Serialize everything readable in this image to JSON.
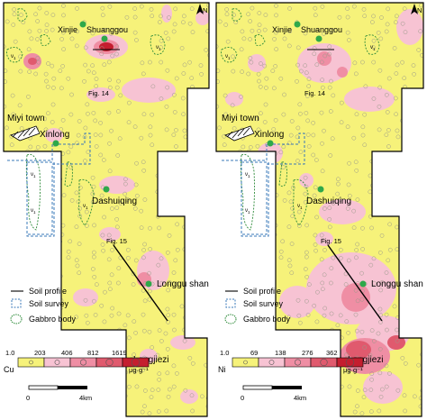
{
  "panels": [
    {
      "id": "cu",
      "element": "Cu",
      "unit": "μg·g⁻¹",
      "legend_breaks": [
        "1.0",
        "203",
        "406",
        "812",
        "1619"
      ],
      "legend_colors": [
        "#f6f27a",
        "#f7c3d3",
        "#ef8ea4",
        "#e05a6e",
        "#c41e2f"
      ]
    },
    {
      "id": "ni",
      "element": "Ni",
      "unit": "μg·g⁻¹",
      "legend_breaks": [
        "1.0",
        "69",
        "138",
        "276",
        "362"
      ],
      "legend_colors": [
        "#f6f27a",
        "#f7c3d3",
        "#ef8ea4",
        "#e05a6e",
        "#c41e2f"
      ]
    }
  ],
  "places": {
    "xinjie": "Xinjie",
    "shuanggou": "Shuanggou",
    "miyi_town": "Miyi town",
    "xinlong": "Xinlong",
    "dashuiqing": "Dashuiqing",
    "longgushan": "Longgu shan",
    "longjiezi": "Longjiezi"
  },
  "figure_refs": {
    "fig14": "Fig. 14",
    "fig15": "Fig. 15"
  },
  "gabbro_label": "ν",
  "gabbro_subscript": "1",
  "legend": {
    "soil_profile": "Soil profile",
    "soil_survey": "Soil survey",
    "gabbro_body": "Gabbro body"
  },
  "scale": {
    "start": "0",
    "end": "4km"
  },
  "north": "N",
  "colors": {
    "background_yellow": "#f6f27a",
    "low_pink": "#f7c3d3",
    "mid_pink": "#ef8ea4",
    "high_red": "#e05a6e",
    "peak_red": "#c41e2f",
    "village_green": "#2ea84a",
    "gabbro_green": "#2e8b3a",
    "survey_blue": "#3a78b8"
  }
}
